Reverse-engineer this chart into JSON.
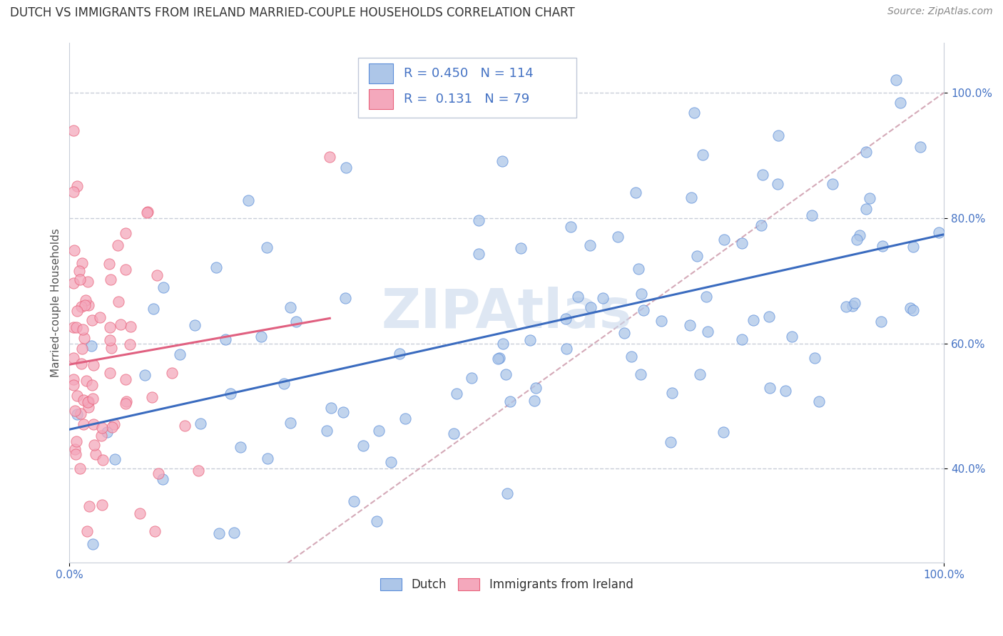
{
  "title": "DUTCH VS IMMIGRANTS FROM IRELAND MARRIED-COUPLE HOUSEHOLDS CORRELATION CHART",
  "source": "Source: ZipAtlas.com",
  "ylabel": "Married-couple Households",
  "xlim": [
    0.0,
    1.0
  ],
  "ylim": [
    0.25,
    1.08
  ],
  "blue_R": 0.45,
  "blue_N": 114,
  "pink_R": 0.131,
  "pink_N": 79,
  "blue_color": "#adc6e8",
  "pink_color": "#f4a8bc",
  "blue_edge_color": "#5b8dd9",
  "pink_edge_color": "#e8607a",
  "blue_line_color": "#3a6bbf",
  "pink_line_color": "#e06080",
  "dashed_line_color": "#d0a0b0",
  "grid_color": "#c8cdd8",
  "tick_color": "#4472c4",
  "ylabel_color": "#555555",
  "title_color": "#333333",
  "source_color": "#888888",
  "watermark_text": "ZIPAtlas",
  "watermark_color": "#c8d8ec",
  "legend_label_blue": "Dutch",
  "legend_label_pink": "Immigrants from Ireland",
  "ytick_positions": [
    0.4,
    0.6,
    0.8,
    1.0
  ],
  "ytick_labels": [
    "40.0%",
    "60.0%",
    "80.0%",
    "100.0%"
  ],
  "xtick_positions": [
    0.0,
    1.0
  ],
  "xtick_labels": [
    "0.0%",
    "100.0%"
  ],
  "title_fontsize": 12,
  "source_fontsize": 10,
  "ylabel_fontsize": 11,
  "tick_fontsize": 11,
  "legend_fontsize": 13,
  "watermark_fontsize": 55,
  "scatter_size": 120,
  "scatter_alpha": 0.75,
  "line_width": 2.2
}
